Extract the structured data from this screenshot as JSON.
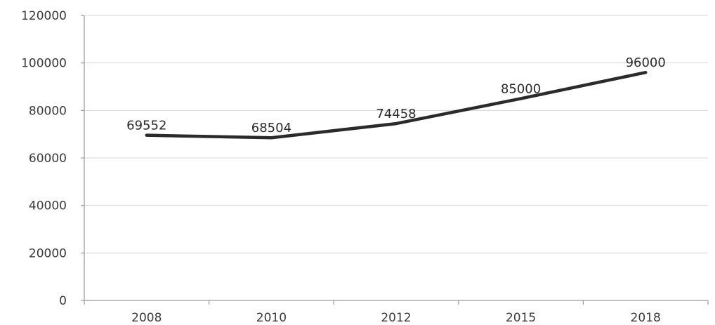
{
  "chart_data": {
    "type": "line",
    "title": "",
    "xlabel": "",
    "ylabel": "",
    "categories": [
      "2008",
      "2010",
      "2012",
      "2015",
      "2018"
    ],
    "series": [
      {
        "values": [
          69552,
          68504,
          74458,
          85000,
          96000
        ]
      }
    ],
    "data_labels": [
      "69552",
      "68504",
      "74458",
      "85000",
      "96000"
    ],
    "y_ticks": [
      0,
      20000,
      40000,
      60000,
      80000,
      100000,
      120000
    ],
    "ylim": [
      0,
      120000
    ],
    "grid": "horizontal",
    "legend": "none",
    "line_color": "#2b2b2b"
  }
}
